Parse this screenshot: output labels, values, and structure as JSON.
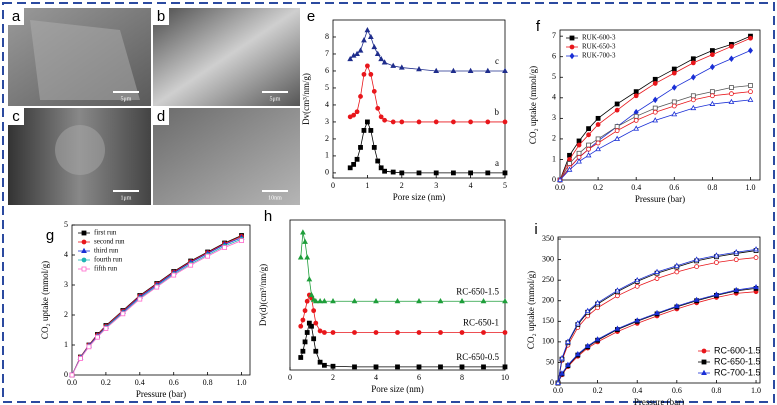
{
  "images": [
    {
      "label": "a",
      "scale": "5μm"
    },
    {
      "label": "b",
      "scale": "5μm"
    },
    {
      "label": "c",
      "scale": "1μm"
    },
    {
      "label": "d",
      "scale": "10nm"
    }
  ],
  "chart_data": [
    {
      "type": "line",
      "panel": "e",
      "xlabel": "Pore size (nm)",
      "ylabel": "Dv(cm³/nm/g)",
      "x": [
        0.5,
        0.6,
        0.7,
        0.8,
        0.9,
        1.0,
        1.1,
        1.2,
        1.3,
        1.4,
        1.5,
        1.75,
        2,
        2.5,
        3,
        3.5,
        4,
        4.5,
        5
      ],
      "xlim": [
        0,
        5
      ],
      "xticks": [
        0,
        1,
        2,
        3,
        4,
        5
      ],
      "ylim": [
        -0.3,
        9
      ],
      "yticks": [
        0,
        1,
        2,
        3,
        4,
        5,
        6,
        7,
        8
      ],
      "series_labels": "end",
      "series": [
        {
          "name": "a",
          "color": "#000000",
          "marker": "square",
          "filled": true,
          "values": [
            0.3,
            0.5,
            0.8,
            1.5,
            2.5,
            3.0,
            2.5,
            1.5,
            0.7,
            0.3,
            0.1,
            0.05,
            0,
            0,
            0,
            0,
            0,
            0,
            0
          ]
        },
        {
          "name": "b",
          "color": "#e8161b",
          "marker": "circle",
          "filled": true,
          "values": [
            3.3,
            3.4,
            3.6,
            4.5,
            5.8,
            6.3,
            5.8,
            4.8,
            3.8,
            3.3,
            3.1,
            3.0,
            3.0,
            3.0,
            3.0,
            3.0,
            3.0,
            3.0,
            3.0
          ]
        },
        {
          "name": "c",
          "color": "#1f2d8c",
          "marker": "triangle",
          "filled": true,
          "values": [
            6.7,
            6.9,
            7.0,
            7.2,
            7.8,
            8.4,
            8.0,
            7.4,
            7.0,
            6.7,
            6.5,
            6.3,
            6.2,
            6.1,
            6.0,
            6.0,
            6.0,
            6.0,
            6.0
          ]
        }
      ]
    },
    {
      "type": "line",
      "panel": "f",
      "xlabel": "Pressure (bar)",
      "ylabel": "CO₂ uptake (mmol/g)",
      "x": [
        0,
        0.05,
        0.1,
        0.15,
        0.2,
        0.3,
        0.4,
        0.5,
        0.6,
        0.7,
        0.8,
        0.9,
        1.0
      ],
      "xlim": [
        0,
        1.05
      ],
      "xticks": [
        {
          "value": 0,
          "label": "0.0"
        },
        0.2,
        0.4,
        0.6,
        0.8,
        {
          "value": 1,
          "label": "1.0"
        }
      ],
      "ylim": [
        0,
        7.3
      ],
      "yticks": [
        0,
        1,
        2,
        3,
        4,
        5,
        6,
        7
      ],
      "legend": "upper left",
      "series": [
        {
          "name": "RUK-600-3",
          "color": "#000000",
          "marker": "square",
          "filled": true,
          "values": [
            0,
            1.2,
            1.9,
            2.5,
            3.0,
            3.7,
            4.3,
            4.9,
            5.4,
            5.9,
            6.3,
            6.6,
            7.0
          ]
        },
        {
          "name": "RUK-650-3",
          "color": "#e8161b",
          "marker": "circle",
          "filled": true,
          "values": [
            0,
            1.0,
            1.7,
            2.2,
            2.7,
            3.4,
            4.1,
            4.7,
            5.2,
            5.7,
            6.1,
            6.5,
            6.9
          ]
        },
        {
          "name": "RUK-700-3",
          "color": "#1a2fd6",
          "marker": "diamond",
          "filled": true,
          "values": [
            0,
            0.6,
            1.1,
            1.5,
            1.9,
            2.6,
            3.3,
            3.9,
            4.5,
            5.0,
            5.5,
            5.9,
            6.3
          ]
        },
        {
          "color": "#555555",
          "marker": "square",
          "filled": false,
          "values": [
            0,
            0.8,
            1.3,
            1.7,
            2.0,
            2.6,
            3.1,
            3.5,
            3.8,
            4.1,
            4.3,
            4.5,
            4.6
          ]
        },
        {
          "color": "#e8161b",
          "marker": "circle",
          "filled": false,
          "values": [
            0,
            0.6,
            1.1,
            1.5,
            1.8,
            2.4,
            2.9,
            3.3,
            3.6,
            3.9,
            4.1,
            4.2,
            4.3
          ]
        },
        {
          "color": "#1a2fd6",
          "marker": "triangle",
          "filled": false,
          "values": [
            0,
            0.5,
            0.9,
            1.2,
            1.5,
            2.0,
            2.5,
            2.9,
            3.2,
            3.5,
            3.7,
            3.8,
            3.9
          ]
        }
      ]
    },
    {
      "type": "line",
      "panel": "g",
      "xlabel": "Pressure (bar)",
      "ylabel": "CO₂ uptake (mmol/g)",
      "x": [
        0,
        0.05,
        0.1,
        0.15,
        0.2,
        0.3,
        0.4,
        0.5,
        0.6,
        0.7,
        0.8,
        0.9,
        1.0
      ],
      "xlim": [
        0,
        1.05
      ],
      "xticks": [
        {
          "value": 0,
          "label": "0.0"
        },
        0.2,
        0.4,
        0.6,
        0.8,
        {
          "value": 1,
          "label": "1.0"
        }
      ],
      "ylim": [
        0,
        5
      ],
      "yticks": [
        0,
        1,
        2,
        3,
        4,
        5
      ],
      "legend": "upper left",
      "series": [
        {
          "name": "first run",
          "color": "#000000",
          "marker": "square",
          "filled": true,
          "values": [
            0,
            0.6,
            1.0,
            1.35,
            1.65,
            2.15,
            2.65,
            3.05,
            3.45,
            3.8,
            4.1,
            4.4,
            4.65
          ]
        },
        {
          "name": "second run",
          "color": "#e8161b",
          "marker": "circle",
          "filled": true,
          "values": [
            0,
            0.6,
            1.0,
            1.33,
            1.63,
            2.13,
            2.63,
            3.03,
            3.43,
            3.78,
            4.08,
            4.38,
            4.62
          ]
        },
        {
          "name": "third run",
          "color": "#1a2fd6",
          "marker": "triangle",
          "filled": true,
          "values": [
            0,
            0.58,
            0.98,
            1.3,
            1.6,
            2.1,
            2.6,
            3.0,
            3.4,
            3.75,
            4.05,
            4.35,
            4.58
          ]
        },
        {
          "name": "fourth run",
          "color": "#1fb5b5",
          "marker": "circle",
          "filled": true,
          "values": [
            0,
            0.57,
            0.96,
            1.28,
            1.58,
            2.07,
            2.56,
            2.96,
            3.36,
            3.7,
            4.0,
            4.3,
            4.53
          ]
        },
        {
          "name": "fifth run",
          "color": "#ff66cc",
          "marker": "square",
          "filled": false,
          "values": [
            0,
            0.55,
            0.94,
            1.26,
            1.55,
            2.04,
            2.53,
            2.93,
            3.33,
            3.66,
            3.96,
            4.25,
            4.48
          ]
        }
      ]
    },
    {
      "type": "line",
      "panel": "h",
      "xlabel": "Pore size (nm)",
      "ylabel": "Dv(d)(cm³/nm/g)",
      "x": [
        0.5,
        0.6,
        0.7,
        0.8,
        0.9,
        1.0,
        1.1,
        1.2,
        1.4,
        1.6,
        2,
        3,
        4,
        5,
        6,
        7,
        8,
        9,
        10
      ],
      "xlim": [
        0,
        10
      ],
      "xticks": [
        0,
        2,
        4,
        6,
        8,
        10
      ],
      "ylim": [
        -0.1,
        4.7
      ],
      "series_labels": "end",
      "series": [
        {
          "name": "RC-650-0.5",
          "color": "#000000",
          "marker": "square",
          "filled": true,
          "values": [
            0.3,
            0.5,
            0.8,
            1.1,
            1.4,
            1.3,
            0.9,
            0.5,
            0.15,
            0.05,
            0.02,
            0,
            0,
            0,
            0,
            0,
            0,
            0,
            0
          ]
        },
        {
          "name": "RC-650-1",
          "color": "#e8161b",
          "marker": "circle",
          "filled": true,
          "values": [
            1.3,
            1.5,
            1.8,
            2.1,
            2.3,
            2.2,
            1.8,
            1.4,
            1.15,
            1.1,
            1.1,
            1.1,
            1.1,
            1.1,
            1.1,
            1.1,
            1.1,
            1.1,
            1.1
          ]
        },
        {
          "name": "RC-650-1.5",
          "color": "#1e9e3a",
          "marker": "triangle",
          "filled": true,
          "values": [
            3.5,
            4.3,
            4.0,
            3.5,
            2.8,
            2.3,
            2.15,
            2.1,
            2.1,
            2.1,
            2.1,
            2.1,
            2.1,
            2.1,
            2.1,
            2.1,
            2.1,
            2.1,
            2.1
          ]
        }
      ]
    },
    {
      "type": "line",
      "panel": "i",
      "xlabel": "Pressure (bar)",
      "ylabel": "CO₂ uptake (mmol/g)",
      "x": [
        0,
        0.02,
        0.05,
        0.1,
        0.15,
        0.2,
        0.3,
        0.4,
        0.5,
        0.6,
        0.7,
        0.8,
        0.9,
        1.0
      ],
      "xlim": [
        0,
        1.02
      ],
      "xticks": [
        {
          "value": 0,
          "label": "0.0"
        },
        0.2,
        0.4,
        0.6,
        0.8,
        {
          "value": 1,
          "label": "1.0"
        }
      ],
      "ylim": [
        0,
        355
      ],
      "yticks": [
        0,
        50,
        100,
        150,
        200,
        250,
        300,
        350
      ],
      "legend": "lower right",
      "series": [
        {
          "name": "RC-600-1.5",
          "color": "#e8161b",
          "marker": "circle",
          "filled": true,
          "values": [
            0,
            20,
            40,
            65,
            85,
            100,
            125,
            145,
            163,
            180,
            195,
            208,
            218,
            222
          ]
        },
        {
          "name": "RC-650-1.5",
          "color": "#000000",
          "marker": "square",
          "filled": true,
          "values": [
            0,
            22,
            42,
            68,
            88,
            104,
            130,
            150,
            168,
            185,
            200,
            213,
            224,
            230
          ]
        },
        {
          "name": "RC-700-1.5",
          "color": "#1a2fd6",
          "marker": "triangle",
          "filled": true,
          "values": [
            0,
            23,
            44,
            70,
            90,
            106,
            132,
            152,
            170,
            187,
            202,
            215,
            226,
            233
          ]
        },
        {
          "color": "#e8161b",
          "marker": "circle",
          "filled": false,
          "values": [
            0,
            55,
            92,
            135,
            163,
            183,
            212,
            235,
            254,
            270,
            283,
            293,
            300,
            305
          ]
        },
        {
          "color": "#000000",
          "marker": "square",
          "filled": false,
          "values": [
            0,
            58,
            98,
            142,
            172,
            192,
            222,
            247,
            267,
            282,
            297,
            307,
            315,
            322
          ]
        },
        {
          "color": "#1a2fd6",
          "marker": "triangle",
          "filled": false,
          "values": [
            0,
            60,
            100,
            145,
            175,
            195,
            225,
            250,
            270,
            285,
            300,
            310,
            318,
            325
          ]
        }
      ]
    }
  ]
}
